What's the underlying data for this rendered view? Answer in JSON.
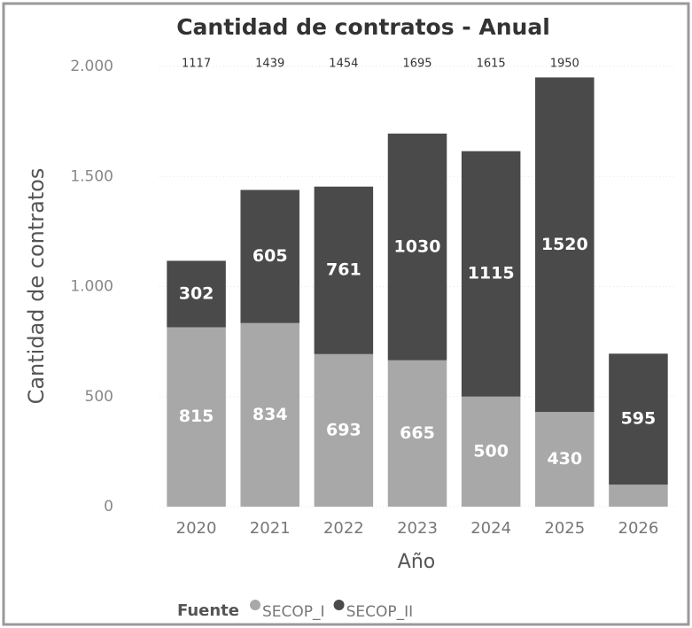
{
  "chart_data": {
    "type": "stacked_bar",
    "title": "Cantidad de contratos - Anual",
    "x_label": "Año",
    "y_label": "Cantidad de contratos",
    "categories": [
      "2020",
      "2021",
      "2022",
      "2023",
      "2024",
      "2025",
      "2026"
    ],
    "series": [
      {
        "name": "SECOP_I",
        "color": "#a8a8a8",
        "values": [
          815,
          834,
          693,
          665,
          500,
          430,
          100
        ]
      },
      {
        "name": "SECOP_II",
        "color": "#4a4a4a",
        "values": [
          302,
          605,
          761,
          1030,
          1115,
          1520,
          595
        ]
      }
    ],
    "totals": [
      1117,
      1439,
      1454,
      1695,
      1615,
      1950,
      null
    ],
    "ylim": [
      0,
      2000
    ],
    "yticks": [
      0,
      500,
      {
        "value": 1000,
        "label": "1.000"
      },
      {
        "value": 1500,
        "label": "1.500"
      },
      {
        "value": 2000,
        "label": "2.000"
      }
    ],
    "grid": true,
    "legend_title": "Fuente",
    "legend_position": "bottom"
  }
}
